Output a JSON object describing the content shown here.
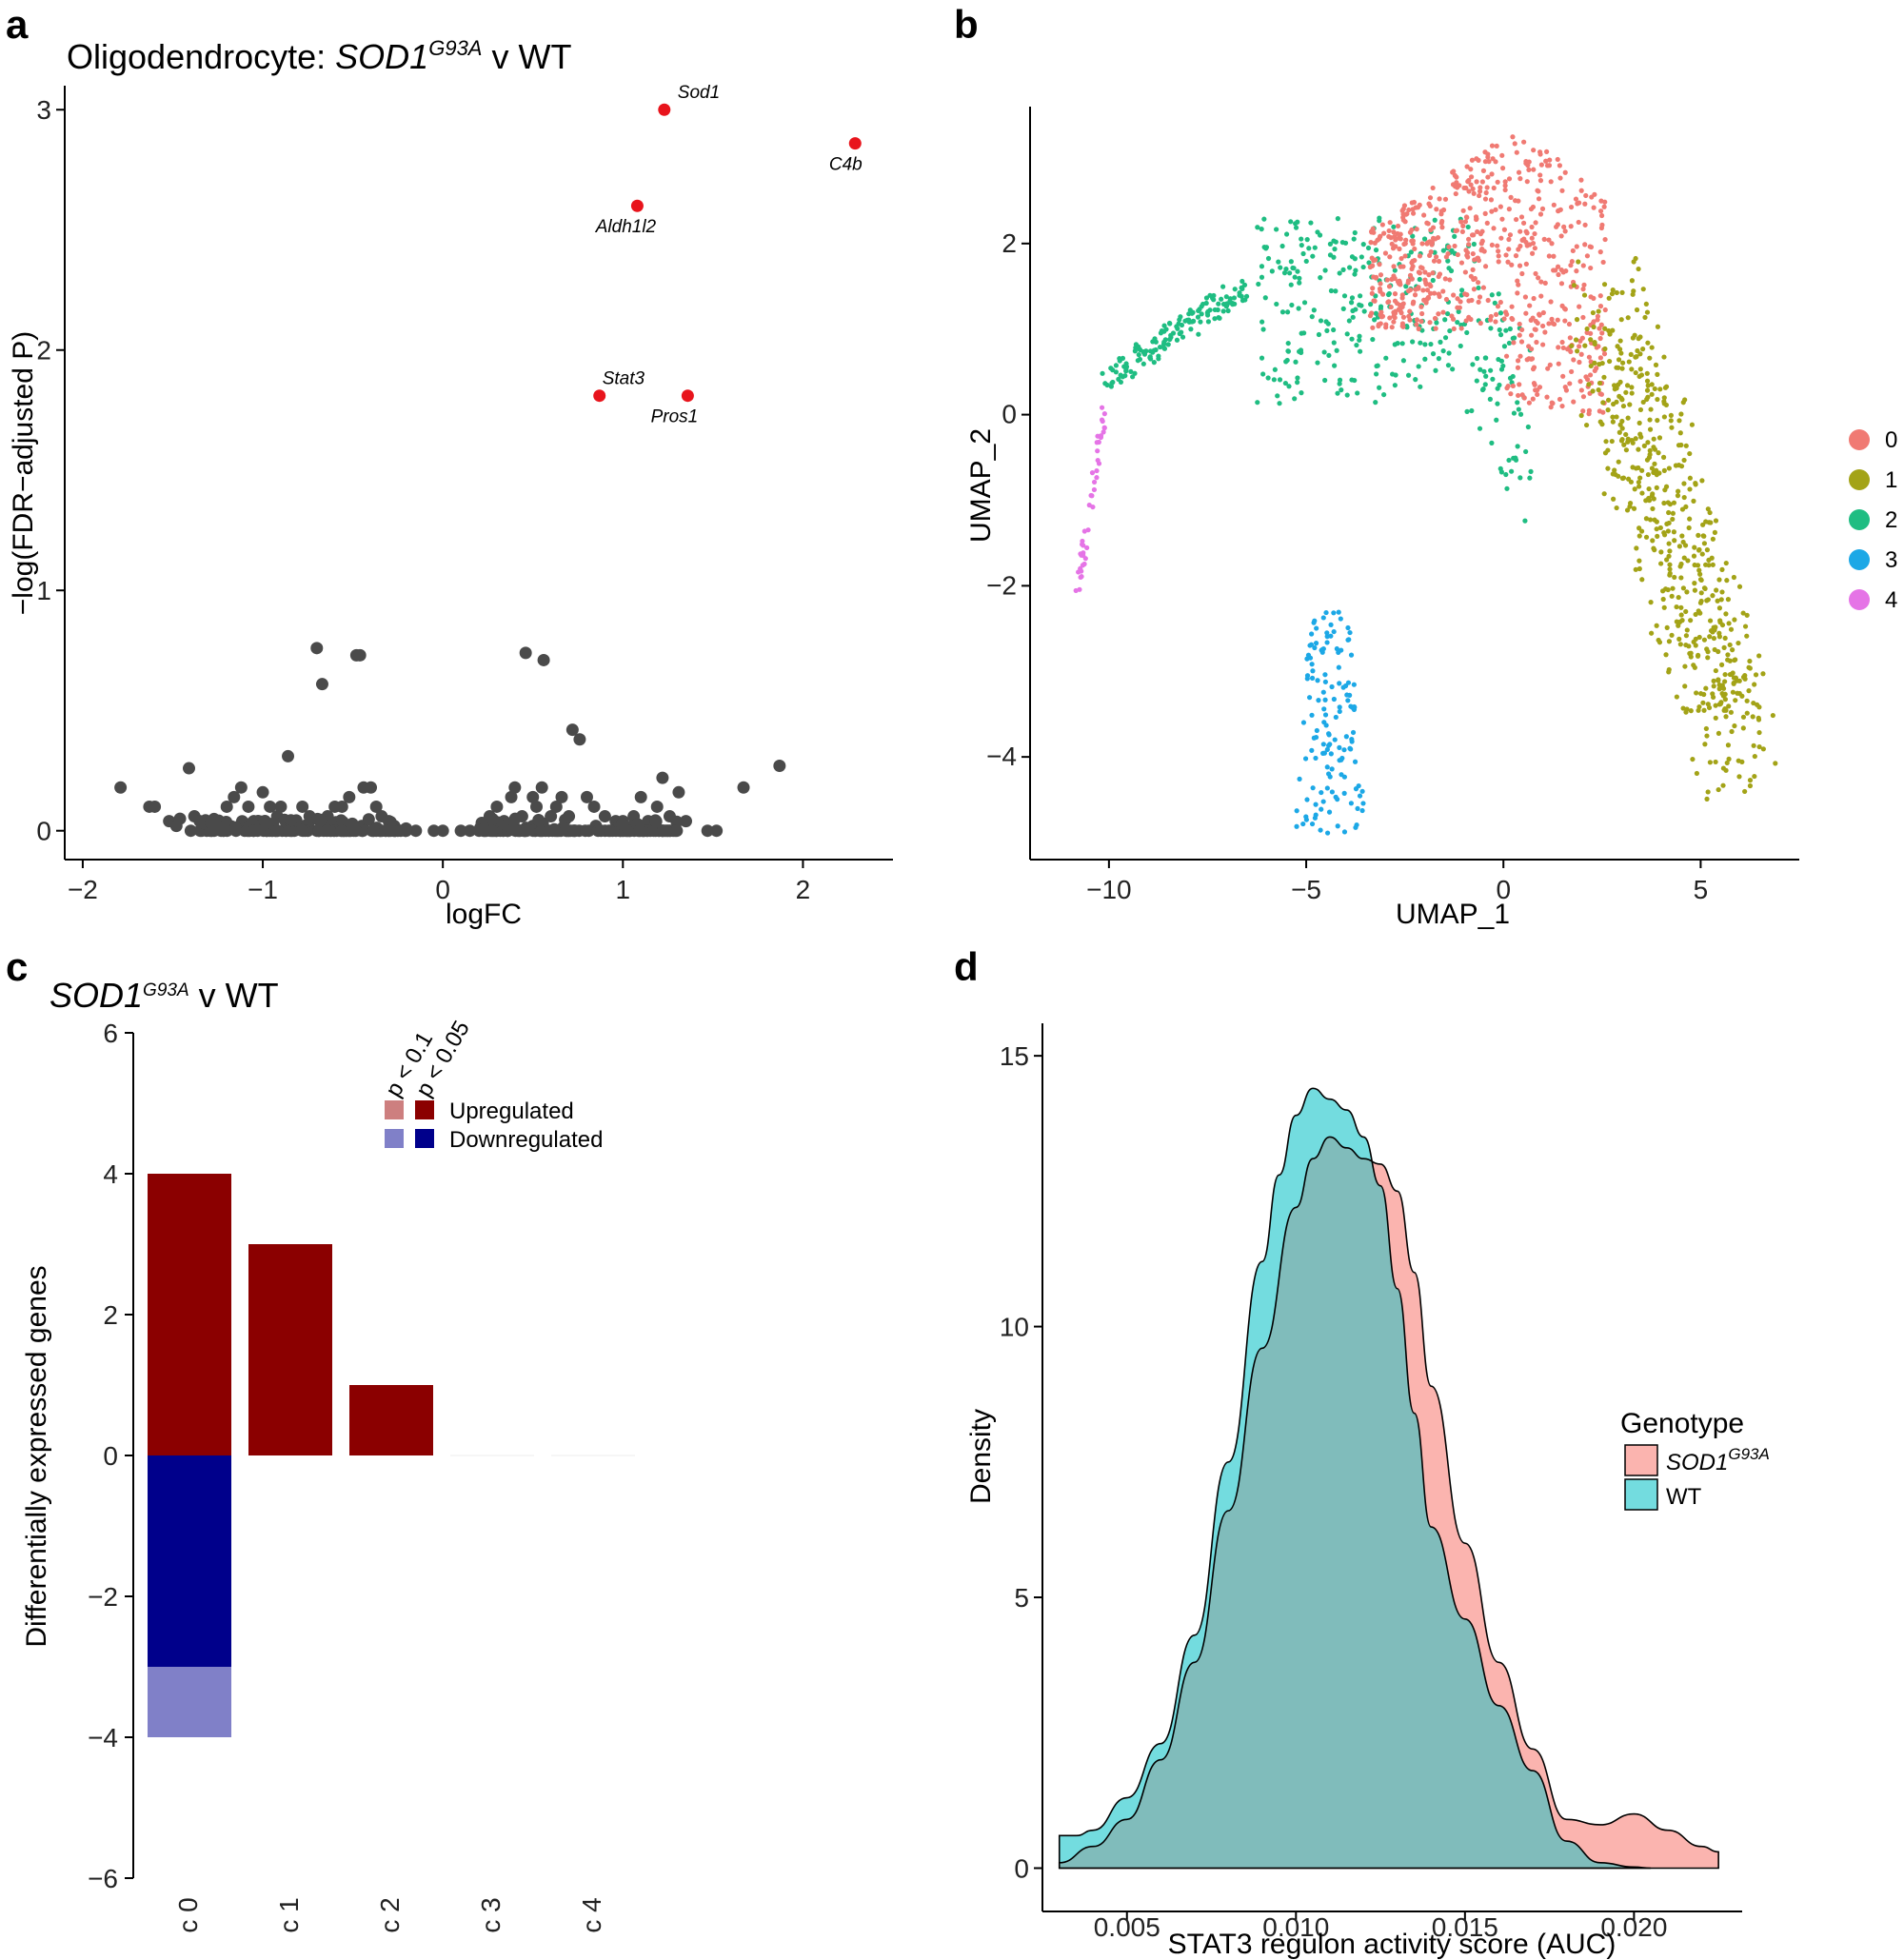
{
  "chart_data": [
    {
      "panel": "a",
      "type": "scatter",
      "title_main": "Oligodendrocyte: ",
      "title_italic": "SOD1",
      "title_sup": "G93A",
      "title_rest": " v WT",
      "xlabel": "logFC",
      "ylabel": "−log(FDR−adjusted P)",
      "xlim": [
        -2.1,
        2.5
      ],
      "ylim": [
        -0.12,
        3.1
      ],
      "xticks": [
        -2,
        -1,
        0,
        1,
        2
      ],
      "xtick_labels": [
        "−2",
        "−1",
        "0",
        "1",
        "2"
      ],
      "yticks": [
        0,
        1,
        2,
        3
      ],
      "ytick_labels": [
        "0",
        "1",
        "2",
        "3"
      ],
      "colors": {
        "significant": "#e8141c",
        "other": "#4a4a4a"
      },
      "labeled_points": [
        {
          "gene": "Sod1",
          "x": 1.23,
          "y": 3.0
        },
        {
          "gene": "C4b",
          "x": 2.29,
          "y": 2.86
        },
        {
          "gene": "Aldh1l2",
          "x": 1.08,
          "y": 2.6
        },
        {
          "gene": "Stat3",
          "x": 0.87,
          "y": 1.81
        },
        {
          "gene": "Pros1",
          "x": 1.36,
          "y": 1.81
        }
      ],
      "background_points": [
        [
          -1.79,
          0.18
        ],
        [
          -1.63,
          0.1
        ],
        [
          -1.6,
          0.1
        ],
        [
          -1.52,
          0.04
        ],
        [
          -1.48,
          0.02
        ],
        [
          -1.46,
          0.05
        ],
        [
          -1.41,
          0.26
        ],
        [
          -1.38,
          0.06
        ],
        [
          -1.35,
          0.04
        ],
        [
          -1.3,
          0.02
        ],
        [
          -1.25,
          0.04
        ],
        [
          -1.2,
          0.1
        ],
        [
          -1.16,
          0.14
        ],
        [
          -1.12,
          0.18
        ],
        [
          -1.08,
          0.1
        ],
        [
          -1.05,
          0.04
        ],
        [
          -1.0,
          0.16
        ],
        [
          -0.96,
          0.1
        ],
        [
          -0.92,
          0.06
        ],
        [
          -0.9,
          0.1
        ],
        [
          -0.86,
          0.31
        ],
        [
          -0.82,
          0.04
        ],
        [
          -0.78,
          0.1
        ],
        [
          -0.74,
          0.06
        ],
        [
          -0.7,
          0.76
        ],
        [
          -0.67,
          0.61
        ],
        [
          -0.64,
          0.06
        ],
        [
          -0.6,
          0.1
        ],
        [
          -0.56,
          0.1
        ],
        [
          -0.52,
          0.14
        ],
        [
          -0.48,
          0.73
        ],
        [
          -0.46,
          0.73
        ],
        [
          -0.44,
          0.18
        ],
        [
          -0.4,
          0.18
        ],
        [
          -0.37,
          0.1
        ],
        [
          -0.34,
          0.06
        ],
        [
          -0.3,
          0.04
        ],
        [
          -0.27,
          0.02
        ],
        [
          -1.4,
          0.0
        ],
        [
          -1.3,
          0.01
        ],
        [
          -1.1,
          0.0
        ],
        [
          -0.95,
          0.0
        ],
        [
          -0.85,
          0.02
        ],
        [
          -0.75,
          0.0
        ],
        [
          -0.65,
          0.02
        ],
        [
          -0.55,
          0.0
        ],
        [
          -0.45,
          0.02
        ],
        [
          -0.35,
          0.0
        ],
        [
          -0.25,
          0.0
        ],
        [
          -0.15,
          0.0
        ],
        [
          0.22,
          0.02
        ],
        [
          0.26,
          0.06
        ],
        [
          0.3,
          0.1
        ],
        [
          0.34,
          0.04
        ],
        [
          0.38,
          0.14
        ],
        [
          0.4,
          0.18
        ],
        [
          0.44,
          0.06
        ],
        [
          0.46,
          0.74
        ],
        [
          0.5,
          0.14
        ],
        [
          0.52,
          0.1
        ],
        [
          0.55,
          0.18
        ],
        [
          0.56,
          0.71
        ],
        [
          0.6,
          0.06
        ],
        [
          0.63,
          0.1
        ],
        [
          0.66,
          0.14
        ],
        [
          0.7,
          0.06
        ],
        [
          0.72,
          0.42
        ],
        [
          0.76,
          0.38
        ],
        [
          0.8,
          0.14
        ],
        [
          0.84,
          0.1
        ],
        [
          0.9,
          0.06
        ],
        [
          0.96,
          0.04
        ],
        [
          1.0,
          0.04
        ],
        [
          1.06,
          0.06
        ],
        [
          1.1,
          0.14
        ],
        [
          1.14,
          0.04
        ],
        [
          1.19,
          0.1
        ],
        [
          1.22,
          0.22
        ],
        [
          1.26,
          0.06
        ],
        [
          1.31,
          0.16
        ],
        [
          1.35,
          0.04
        ],
        [
          1.47,
          0.0
        ],
        [
          1.52,
          0.0
        ],
        [
          1.67,
          0.18
        ],
        [
          1.87,
          0.27
        ],
        [
          0.3,
          0.0
        ],
        [
          0.5,
          0.02
        ],
        [
          0.7,
          0.0
        ],
        [
          0.85,
          0.02
        ],
        [
          1.0,
          0.0
        ],
        [
          1.1,
          0.02
        ],
        [
          1.2,
          0.0
        ],
        [
          0.0,
          0.0
        ],
        [
          0.1,
          0.0
        ],
        [
          -0.05,
          0.0
        ],
        [
          0.15,
          0.0
        ]
      ]
    },
    {
      "panel": "b",
      "type": "scatter",
      "xlabel": "UMAP_1",
      "ylabel": "UMAP_2",
      "xlim": [
        -12,
        7.5
      ],
      "ylim": [
        -5.2,
        3.6
      ],
      "xticks": [
        -10,
        -5,
        0,
        5
      ],
      "xtick_labels": [
        "−10",
        "−5",
        "0",
        "5"
      ],
      "yticks": [
        -4,
        -2,
        0,
        2
      ],
      "ytick_labels": [
        "−4",
        "−2",
        "0",
        "2"
      ],
      "legend_position": "right",
      "clusters": [
        {
          "name": "0",
          "color": "#f07a73"
        },
        {
          "name": "1",
          "color": "#a3a317"
        },
        {
          "name": "2",
          "color": "#1fbd82"
        },
        {
          "name": "3",
          "color": "#1ca8e6"
        },
        {
          "name": "4",
          "color": "#e574e6"
        }
      ],
      "cluster_regions": [
        {
          "cluster": 0,
          "n": 650,
          "x": [
            -3.5,
            2.7
          ],
          "y": [
            -0.4,
            3.5
          ]
        },
        {
          "cluster": 1,
          "n": 550,
          "x": [
            1.0,
            6.9
          ],
          "y": [
            -4.4,
            1.4
          ]
        },
        {
          "cluster": 2,
          "n": 480,
          "x": [
            -10.2,
            1.2
          ],
          "y": [
            -2.2,
            3.2
          ]
        },
        {
          "cluster": 3,
          "n": 140,
          "x": [
            -5.3,
            -3.4
          ],
          "y": [
            -4.9,
            -2.3
          ]
        },
        {
          "cluster": 4,
          "n": 45,
          "x": [
            -10.9,
            -10.0
          ],
          "y": [
            -2.2,
            0.1
          ]
        }
      ]
    },
    {
      "panel": "c",
      "type": "bar",
      "title_italic": "SOD1",
      "title_sup": "G93A",
      "title_rest": " v WT",
      "ylabel": "Differentially expressed genes",
      "ylim": [
        -6,
        6
      ],
      "yticks": [
        -6,
        -4,
        -2,
        0,
        2,
        4,
        6
      ],
      "ytick_labels": [
        "−6",
        "−4",
        "−2",
        "0",
        "2",
        "4",
        "6"
      ],
      "categories": [
        "c 0",
        "c 1",
        "c 2",
        "c 3",
        "c 4"
      ],
      "series": [
        {
          "name": "Upregulated p < 0.05",
          "color": "#8b0000",
          "values": [
            4,
            3,
            1,
            0,
            0
          ]
        },
        {
          "name": "Upregulated p < 0.1",
          "color": "#cd7f7f",
          "values": [
            0,
            0,
            0,
            0,
            0
          ]
        },
        {
          "name": "Downregulated p < 0.05",
          "color": "#00008b",
          "values": [
            -3,
            0,
            0,
            0,
            0
          ]
        },
        {
          "name": "Downregulated p < 0.1",
          "color": "#8080c8",
          "values": [
            -1,
            0,
            0,
            0,
            0
          ]
        }
      ],
      "legend": {
        "col_headers": [
          "p < 0.1",
          "p < 0.05"
        ],
        "rows": [
          {
            "label": "Upregulated",
            "colors": [
              "#cd7f7f",
              "#8b0000"
            ]
          },
          {
            "label": "Downregulated",
            "colors": [
              "#8080c8",
              "#00008b"
            ]
          }
        ]
      }
    },
    {
      "panel": "d",
      "type": "area",
      "xlabel": "STAT3 regulon activity score (AUC)",
      "ylabel": "Density",
      "xlim": [
        0.0025,
        0.0232
      ],
      "ylim": [
        -0.8,
        15.6
      ],
      "xticks": [
        0.005,
        0.01,
        0.015,
        0.02
      ],
      "xtick_labels": [
        "0.005",
        "0.010",
        "0.015",
        "0.020"
      ],
      "yticks": [
        0,
        5,
        10,
        15
      ],
      "ytick_labels": [
        "0",
        "5",
        "10",
        "15"
      ],
      "legend_title": "Genotype",
      "legend_position": "right",
      "series": [
        {
          "name_italic": "SOD1",
          "name_sup": "G93A",
          "color": "#f8766d",
          "x": [
            0.003,
            0.004,
            0.005,
            0.006,
            0.007,
            0.008,
            0.009,
            0.01,
            0.0105,
            0.011,
            0.0115,
            0.012,
            0.0125,
            0.013,
            0.0135,
            0.014,
            0.015,
            0.016,
            0.017,
            0.018,
            0.019,
            0.02,
            0.021,
            0.022,
            0.0225
          ],
          "y": [
            0.1,
            0.4,
            0.9,
            2.0,
            3.8,
            6.6,
            9.6,
            12.2,
            13.1,
            13.5,
            13.3,
            13.1,
            13.0,
            12.5,
            11.0,
            8.9,
            6.0,
            3.8,
            2.2,
            0.9,
            0.8,
            1.0,
            0.7,
            0.4,
            0.3
          ]
        },
        {
          "name": "WT",
          "color": "#00bfc4",
          "x": [
            0.003,
            0.0035,
            0.004,
            0.005,
            0.006,
            0.007,
            0.008,
            0.009,
            0.0095,
            0.01,
            0.0105,
            0.011,
            0.0115,
            0.012,
            0.0125,
            0.013,
            0.0135,
            0.014,
            0.015,
            0.016,
            0.017,
            0.018,
            0.019,
            0.02,
            0.0205
          ],
          "y": [
            0.6,
            0.6,
            0.7,
            1.3,
            2.3,
            4.3,
            7.5,
            11.2,
            12.8,
            13.9,
            14.4,
            14.2,
            14.0,
            13.5,
            12.6,
            10.7,
            8.4,
            6.3,
            4.6,
            3.0,
            1.8,
            0.5,
            0.1,
            0.02,
            0.0
          ]
        }
      ],
      "overlap_color": "#80bcbb"
    }
  ],
  "panel_labels": {
    "a": "a",
    "b": "b",
    "c": "c",
    "d": "d"
  }
}
